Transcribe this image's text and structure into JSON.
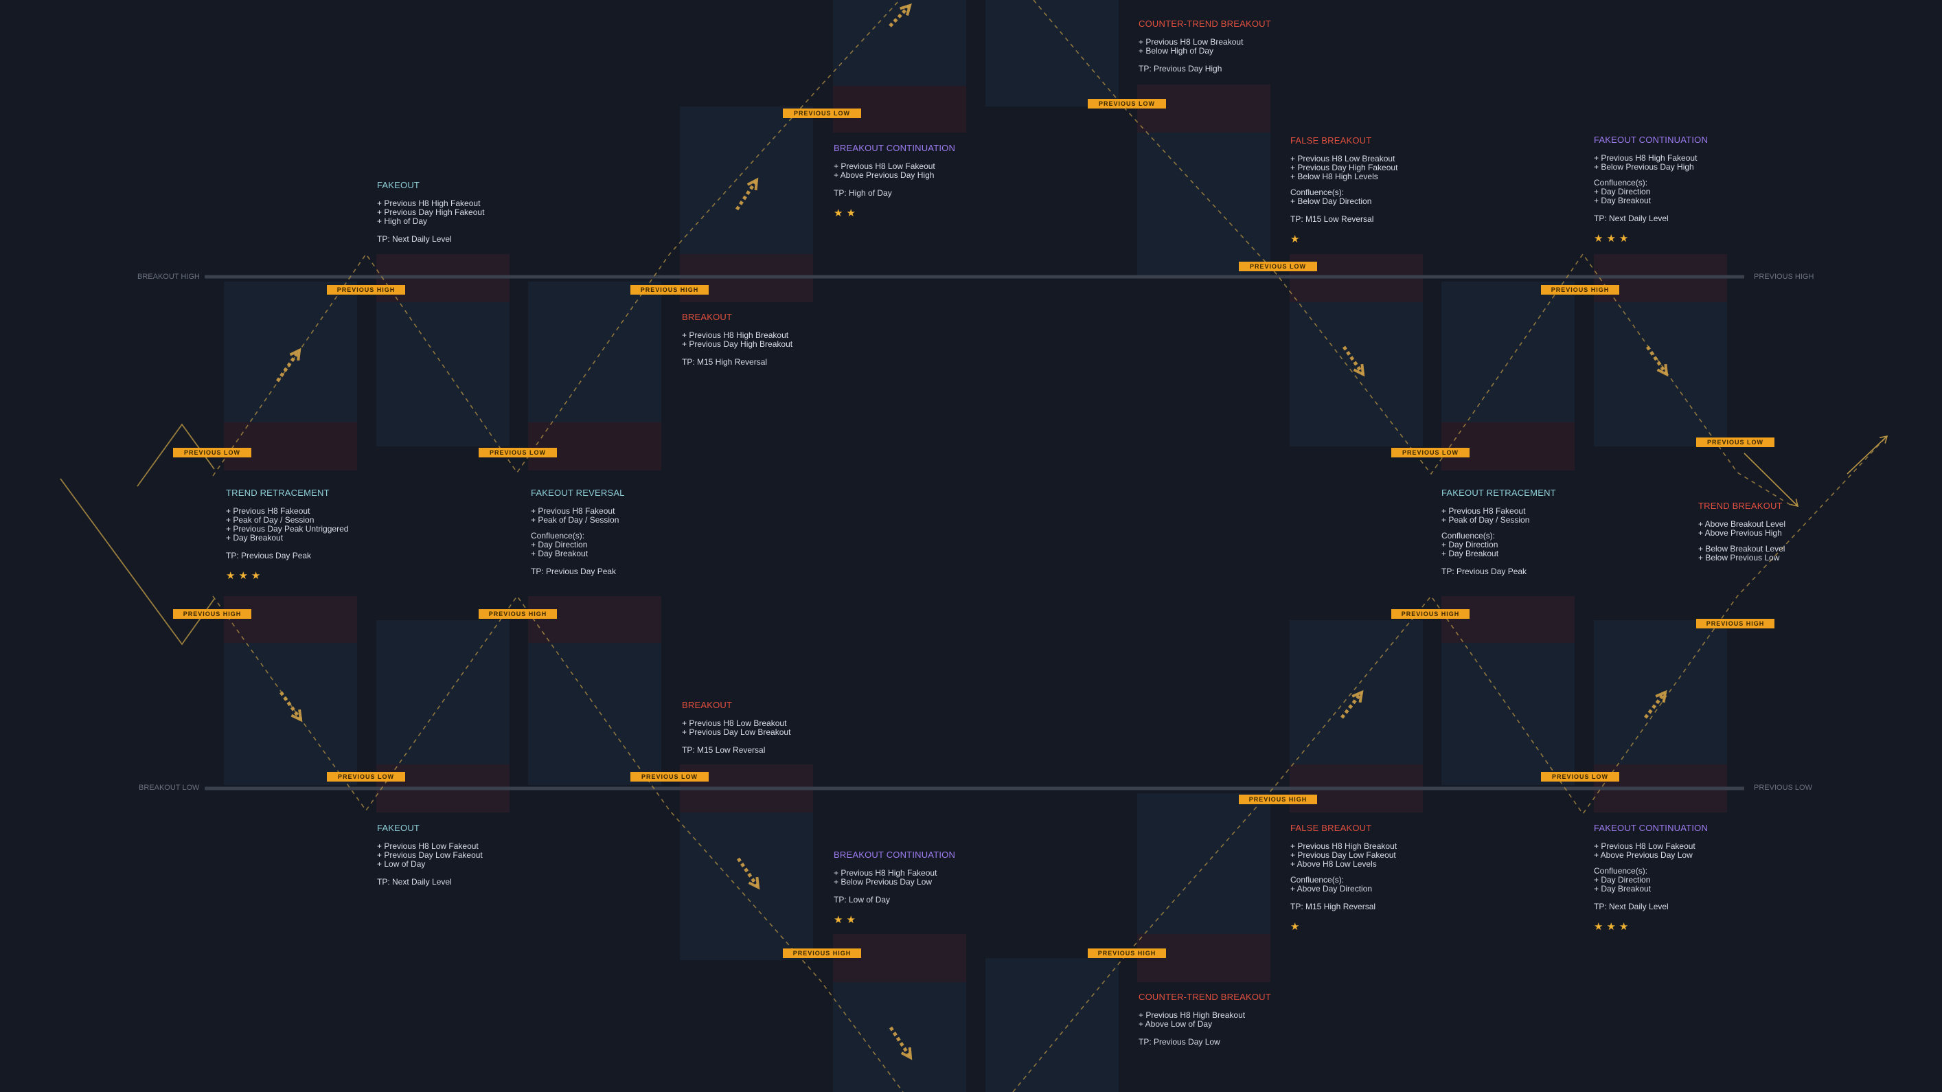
{
  "colors": {
    "background": "#141924",
    "accent": "#f0a11e",
    "teal_title": "#8fd0d8",
    "red_title": "#e2503e",
    "purple_title": "#9d7cf0",
    "star": "#f2b233",
    "zone_blue": "#182433",
    "zone_red": "#2a1c26"
  },
  "levels": {
    "breakout_high_left": "BREAKOUT HIGH",
    "previous_high_right": "PREVIOUS HIGH",
    "breakout_low_left": "BREAKOUT LOW",
    "previous_low_right": "PREVIOUS LOW"
  },
  "tags": {
    "previous_high": "PREVIOUS HIGH",
    "previous_low": "PREVIOUS LOW"
  },
  "cards": {
    "fakeout_top": {
      "title": "FAKEOUT",
      "lines": [
        "+ Previous H8 High Fakeout",
        "+ Previous Day High Fakeout",
        "+ High of Day"
      ],
      "tp": "TP: Next Daily Level"
    },
    "breakout_continuation_top": {
      "title": "BREAKOUT CONTINUATION",
      "lines": [
        "+ Previous H8 Low Fakeout",
        "+ Above Previous Day High"
      ],
      "tp": "TP: High of Day",
      "stars": "★★"
    },
    "counter_trend_top": {
      "title": "COUNTER-TREND BREAKOUT",
      "lines": [
        "+ Previous H8 Low Breakout",
        "+ Below High of Day"
      ],
      "tp": "TP: Previous Day High"
    },
    "false_breakout_top": {
      "title": "FALSE BREAKOUT",
      "lines": [
        "+ Previous H8 Low Breakout",
        "+ Previous Day High Fakeout",
        "+ Below H8 High Levels"
      ],
      "confluence_label": "Confluence(s):",
      "confluence": [
        "+ Below Day Direction"
      ],
      "tp": "TP: M15 Low Reversal",
      "stars": "★"
    },
    "fakeout_continuation_top": {
      "title": "FAKEOUT CONTINUATION",
      "lines": [
        "+ Previous H8 High Fakeout",
        "+ Below Previous Day High"
      ],
      "confluence_label": "Confluence(s):",
      "confluence": [
        "+ Day Direction",
        "+ Day Breakout"
      ],
      "tp": "TP: Next Daily Level",
      "stars": "★★★"
    },
    "breakout_top": {
      "title": "BREAKOUT",
      "lines": [
        "+ Previous H8 High Breakout",
        "+ Previous Day High Breakout"
      ],
      "tp": "TP: M15 High Reversal"
    },
    "trend_retracement_left": {
      "title": "TREND RETRACEMENT",
      "lines": [
        "+ Previous H8 Fakeout",
        "+ Peak of Day / Session",
        "+ Previous Day Peak Untriggered",
        "+ Day Breakout"
      ],
      "tp": "TP: Previous Day Peak",
      "stars": "★★★"
    },
    "fakeout_reversal_left": {
      "title": "FAKEOUT REVERSAL",
      "lines": [
        "+ Previous H8 Fakeout",
        "+ Peak of Day / Session"
      ],
      "confluence_label": "Confluence(s):",
      "confluence": [
        "+ Day Direction",
        "+ Day Breakout"
      ],
      "tp": "TP: Previous Day Peak"
    },
    "fakeout_retracement_right": {
      "title": "FAKEOUT RETRACEMENT",
      "lines": [
        "+ Previous H8 Fakeout",
        "+ Peak of Day / Session"
      ],
      "confluence_label": "Confluence(s):",
      "confluence": [
        "+ Day Direction",
        "+ Day Breakout"
      ],
      "tp": "TP: Previous Day Peak"
    },
    "trend_breakout_right": {
      "title": "TREND BREAKOUT",
      "lines": [
        "+ Above Breakout Level",
        "+ Above Previous High"
      ],
      "lines2": [
        "+ Below Breakout Level",
        "+ Below Previous Low"
      ]
    },
    "breakout_bottom": {
      "title": "BREAKOUT",
      "lines": [
        "+ Previous H8 Low Breakout",
        "+ Previous Day Low Breakout"
      ],
      "tp": "TP: M15 Low Reversal"
    },
    "fakeout_bottom": {
      "title": "FAKEOUT",
      "lines": [
        "+ Previous H8 Low Fakeout",
        "+ Previous Day Low Fakeout",
        "+ Low of Day"
      ],
      "tp": "TP: Next Daily Level"
    },
    "breakout_continuation_bottom": {
      "title": "BREAKOUT CONTINUATION",
      "lines": [
        "+ Previous H8 High Fakeout",
        "+ Below Previous Day Low"
      ],
      "tp": "TP: Low of Day",
      "stars": "★★"
    },
    "counter_trend_bottom": {
      "title": "COUNTER-TREND BREAKOUT",
      "lines": [
        "+ Previous H8 High Breakout",
        "+ Above Low of Day"
      ],
      "tp": "TP: Previous Day Low"
    },
    "false_breakout_bottom": {
      "title": "FALSE BREAKOUT",
      "lines": [
        "+ Previous H8 High Breakout",
        "+ Previous Day Low Fakeout",
        "+ Above H8 Low Levels"
      ],
      "confluence_label": "Confluence(s):",
      "confluence": [
        "+ Above Day Direction"
      ],
      "tp": "TP: M15 High Reversal",
      "stars": "★"
    },
    "fakeout_continuation_bottom": {
      "title": "FAKEOUT CONTINUATION",
      "lines": [
        "+ Previous H8 Low Fakeout",
        "+ Above Previous Day Low"
      ],
      "confluence_label": "Confluence(s):",
      "confluence": [
        "+ Day Direction",
        "+ Day Breakout"
      ],
      "tp": "TP: Next Daily Level",
      "stars": "★★★"
    }
  }
}
